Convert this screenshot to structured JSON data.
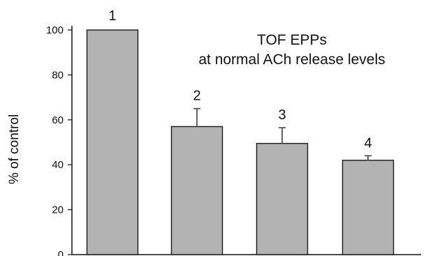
{
  "chart_data": {
    "type": "bar",
    "title": "TOF EPPs",
    "subtitle": "at normal ACh release levels",
    "xlabel": "",
    "ylabel": "% of control",
    "categories": [
      "1",
      "2",
      "3",
      "4"
    ],
    "values": [
      100,
      57,
      49.5,
      42
    ],
    "error_upper": [
      0,
      8,
      7,
      2
    ],
    "bar_labels": [
      "1",
      "2",
      "3",
      "4"
    ],
    "ylim": [
      0,
      100
    ],
    "yticks": [
      0,
      20,
      40,
      60,
      80,
      100
    ],
    "bar_color": "#b3b3b3",
    "grid": false
  }
}
